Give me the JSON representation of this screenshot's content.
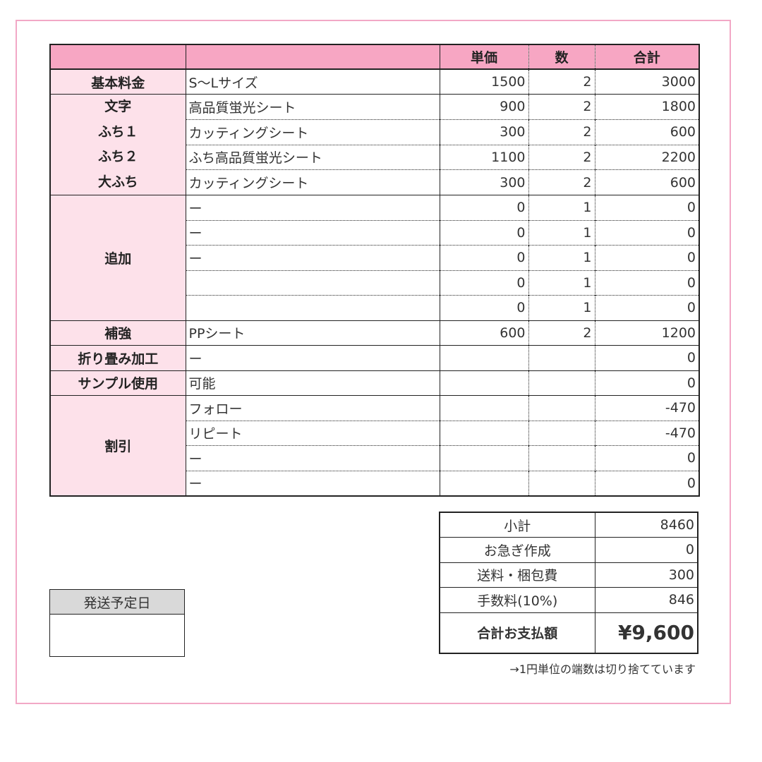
{
  "header": {
    "unit_price": "単価",
    "quantity": "数",
    "total": "合計"
  },
  "groups": [
    {
      "labels": [
        "基本料金"
      ],
      "rows": [
        {
          "item": "S〜Lサイズ",
          "unit_price": "1500",
          "quantity": "2",
          "total": "3000"
        }
      ]
    },
    {
      "labels": [
        "文字",
        "ふち１",
        "ふち２",
        "大ふち"
      ],
      "rows": [
        {
          "item": "高品質蛍光シート",
          "unit_price": "900",
          "quantity": "2",
          "total": "1800"
        },
        {
          "item": "カッティングシート",
          "unit_price": "300",
          "quantity": "2",
          "total": "600"
        },
        {
          "item": "ふち高品質蛍光シート",
          "unit_price": "1100",
          "quantity": "2",
          "total": "2200"
        },
        {
          "item": "カッティングシート",
          "unit_price": "300",
          "quantity": "2",
          "total": "600"
        }
      ]
    },
    {
      "labels": [
        "追加"
      ],
      "rows": [
        {
          "item": "ー",
          "unit_price": "0",
          "quantity": "1",
          "total": "0"
        },
        {
          "item": "ー",
          "unit_price": "0",
          "quantity": "1",
          "total": "0"
        },
        {
          "item": "ー",
          "unit_price": "0",
          "quantity": "1",
          "total": "0"
        },
        {
          "item": "",
          "unit_price": "0",
          "quantity": "1",
          "total": "0"
        },
        {
          "item": "",
          "unit_price": "0",
          "quantity": "1",
          "total": "0"
        }
      ]
    },
    {
      "labels": [
        "補強"
      ],
      "rows": [
        {
          "item": "PPシート",
          "unit_price": "600",
          "quantity": "2",
          "total": "1200"
        }
      ]
    },
    {
      "labels": [
        "折り畳み加工"
      ],
      "rows": [
        {
          "item": "ー",
          "unit_price": "",
          "quantity": "",
          "total": "0"
        }
      ]
    },
    {
      "labels": [
        "サンプル使用"
      ],
      "rows": [
        {
          "item": "可能",
          "unit_price": "",
          "quantity": "",
          "total": "0"
        }
      ]
    },
    {
      "labels": [
        "割引"
      ],
      "rows": [
        {
          "item": "フォロー",
          "unit_price": "",
          "quantity": "",
          "total": "-470"
        },
        {
          "item": "リピート",
          "unit_price": "",
          "quantity": "",
          "total": "-470"
        },
        {
          "item": "ー",
          "unit_price": "",
          "quantity": "",
          "total": "0"
        },
        {
          "item": "ー",
          "unit_price": "",
          "quantity": "",
          "total": "0"
        }
      ]
    }
  ],
  "summary": [
    {
      "label": "小計",
      "value": "8460"
    },
    {
      "label": "お急ぎ作成",
      "value": "0"
    },
    {
      "label": "送料・梱包費",
      "value": "300"
    },
    {
      "label": "手数料(10%)",
      "value": "846"
    },
    {
      "label": "合計お支払額",
      "value": "¥9,600"
    }
  ],
  "note": "→1円単位の端数は切り捨てています",
  "ship_date": {
    "label": "発送予定日",
    "value": ""
  },
  "colors": {
    "frame": "#f2a8c6",
    "header": "#f7a6c3",
    "label_bg": "#fde1ea",
    "date_header": "#d9d9d9"
  }
}
